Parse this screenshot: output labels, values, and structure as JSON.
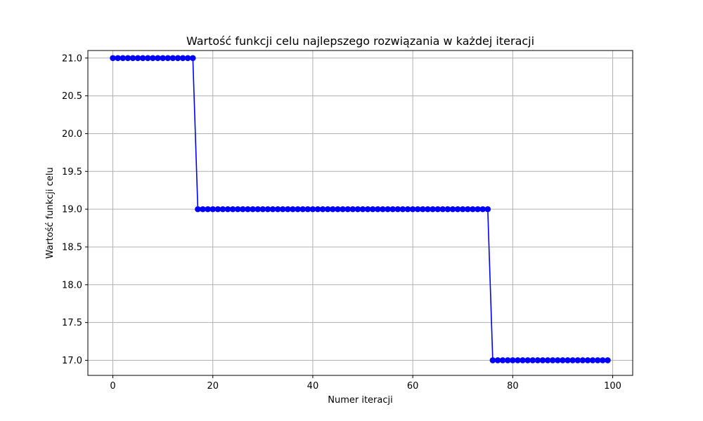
{
  "chart_data": {
    "type": "line",
    "title": "Wartość funkcji celu najlepszego rozwiązania w każdej iteracji",
    "xlabel": "Numer iteracji",
    "ylabel": "Wartość funkcji celu",
    "xlim": [
      -5,
      104
    ],
    "ylim": [
      16.8,
      21.1
    ],
    "xticks": [
      0,
      20,
      40,
      60,
      80,
      100
    ],
    "xtick_labels": [
      "0",
      "20",
      "40",
      "60",
      "80",
      "100"
    ],
    "yticks": [
      17.0,
      17.5,
      18.0,
      18.5,
      19.0,
      19.5,
      20.0,
      20.5,
      21.0
    ],
    "ytick_labels": [
      "17.0",
      "17.5",
      "18.0",
      "18.5",
      "19.0",
      "19.5",
      "20.0",
      "20.5",
      "21.0"
    ],
    "grid": true,
    "series": [
      {
        "color": "#0000ff",
        "marker": "circle",
        "segments": [
          {
            "x_start": 0,
            "x_end": 16,
            "y": 21.0
          },
          {
            "x_start": 17,
            "x_end": 75,
            "y": 19.0
          },
          {
            "x_start": 76,
            "x_end": 99,
            "y": 17.0
          }
        ]
      }
    ]
  }
}
